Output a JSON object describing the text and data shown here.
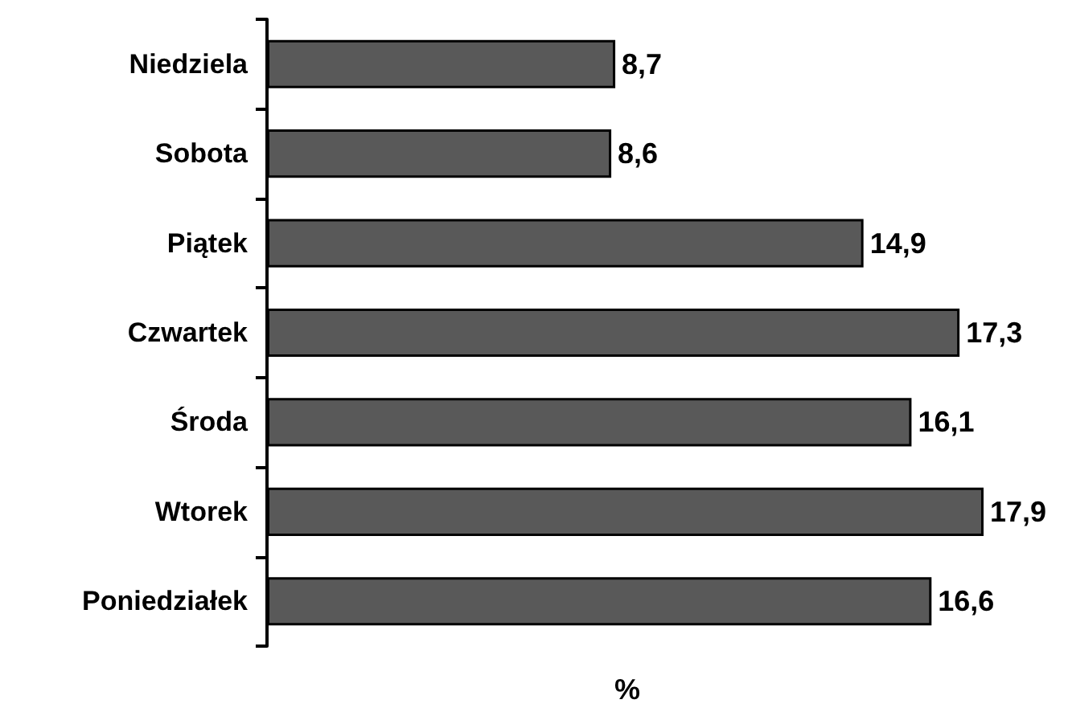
{
  "chart_data": {
    "type": "bar",
    "orientation": "horizontal",
    "relative": false,
    "xlabel": "%",
    "categories": [
      "Niedziela",
      "Sobota",
      "Piątek",
      "Czwartek",
      "Środa",
      "Wtorek",
      "Poniedziałek"
    ],
    "values": [
      8.7,
      8.6,
      14.9,
      17.3,
      16.1,
      17.9,
      16.6
    ],
    "value_labels": [
      "8,7",
      "8,6",
      "14,9",
      "17,3",
      "16,1",
      "17,9",
      "16,6"
    ],
    "color": "#595959"
  }
}
